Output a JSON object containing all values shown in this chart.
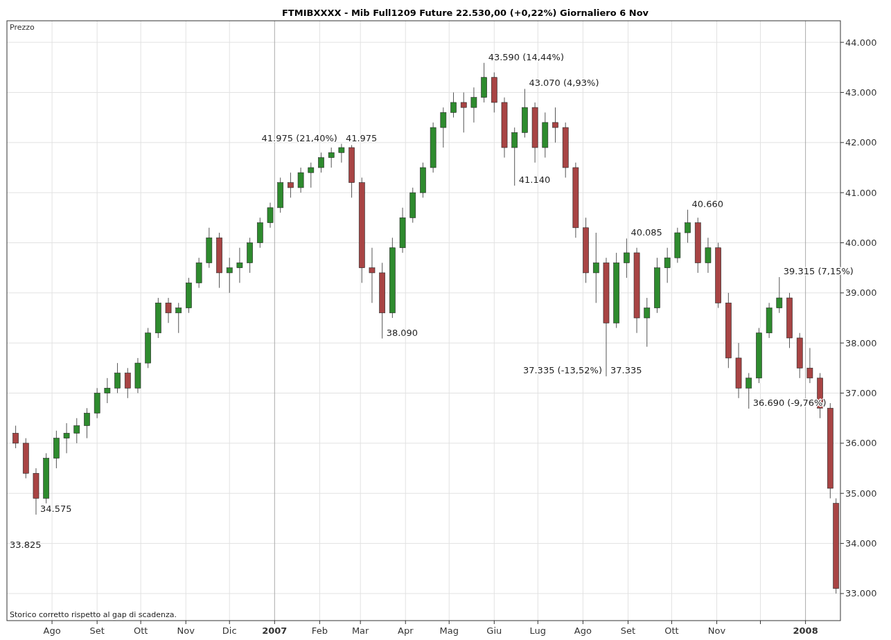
{
  "chart_data": {
    "type": "candlestick",
    "title": "FTMIBXXXX - Mib Full1209 Future    22.530,00 (+0,22%)    Giornaliero  6 Nov",
    "ylabel": "Prezzo",
    "x": [
      "2006-07-07",
      "2006-07-14",
      "2006-07-21",
      "2006-07-28",
      "2006-08-04",
      "2006-08-11",
      "2006-08-18",
      "2006-08-25",
      "2006-09-01",
      "2006-09-08",
      "2006-09-15",
      "2006-09-22",
      "2006-09-29",
      "2006-10-06",
      "2006-10-13",
      "2006-10-20",
      "2006-10-27",
      "2006-11-03",
      "2006-11-10",
      "2006-11-17",
      "2006-11-24",
      "2006-12-01",
      "2006-12-08",
      "2006-12-15",
      "2006-12-22",
      "2006-12-29",
      "2007-01-05",
      "2007-01-12",
      "2007-01-19",
      "2007-01-26",
      "2007-02-02",
      "2007-02-09",
      "2007-02-16",
      "2007-02-23",
      "2007-03-02",
      "2007-03-09",
      "2007-03-16",
      "2007-03-23",
      "2007-03-30",
      "2007-04-06",
      "2007-04-13",
      "2007-04-20",
      "2007-04-27",
      "2007-05-04",
      "2007-05-11",
      "2007-05-18",
      "2007-05-25",
      "2007-06-01",
      "2007-06-08",
      "2007-06-15",
      "2007-06-22",
      "2007-06-29",
      "2007-07-06",
      "2007-07-13",
      "2007-07-20",
      "2007-07-27",
      "2007-08-03",
      "2007-08-10",
      "2007-08-17",
      "2007-08-24",
      "2007-08-31",
      "2007-09-07",
      "2007-09-14",
      "2007-09-21",
      "2007-09-28",
      "2007-10-05",
      "2007-10-12",
      "2007-10-19",
      "2007-10-26",
      "2007-11-02",
      "2007-11-09",
      "2007-11-16",
      "2007-11-23",
      "2007-11-30",
      "2007-12-07",
      "2007-12-14",
      "2007-12-21",
      "2007-12-28",
      "2008-01-04",
      "2008-01-11",
      "2008-01-18",
      "2008-01-22"
    ],
    "ohlc": [
      [
        36200,
        36350,
        35900,
        36000
      ],
      [
        36000,
        36100,
        35300,
        35400
      ],
      [
        35400,
        35500,
        34575,
        34900
      ],
      [
        34900,
        35800,
        34800,
        35700
      ],
      [
        35700,
        36250,
        35500,
        36100
      ],
      [
        36100,
        36400,
        35800,
        36200
      ],
      [
        36200,
        36500,
        36000,
        36350
      ],
      [
        36350,
        36700,
        36100,
        36600
      ],
      [
        36600,
        37100,
        36500,
        37000
      ],
      [
        37000,
        37300,
        36800,
        37100
      ],
      [
        37100,
        37600,
        37000,
        37400
      ],
      [
        37400,
        37500,
        36900,
        37100
      ],
      [
        37100,
        37700,
        37000,
        37600
      ],
      [
        37600,
        38300,
        37500,
        38200
      ],
      [
        38200,
        38900,
        38100,
        38800
      ],
      [
        38800,
        38900,
        38400,
        38600
      ],
      [
        38600,
        38800,
        38200,
        38700
      ],
      [
        38700,
        39300,
        38600,
        39200
      ],
      [
        39200,
        39700,
        39100,
        39600
      ],
      [
        39600,
        40300,
        39500,
        40100
      ],
      [
        40100,
        40200,
        39100,
        39400
      ],
      [
        39400,
        39700,
        39000,
        39500
      ],
      [
        39500,
        39900,
        39200,
        39600
      ],
      [
        39600,
        40100,
        39400,
        40000
      ],
      [
        40000,
        40500,
        39900,
        40400
      ],
      [
        40400,
        40800,
        40300,
        40700
      ],
      [
        40700,
        41300,
        40600,
        41200
      ],
      [
        41200,
        41400,
        40900,
        41100
      ],
      [
        41100,
        41500,
        41000,
        41400
      ],
      [
        41400,
        41600,
        41100,
        41500
      ],
      [
        41500,
        41800,
        41400,
        41700
      ],
      [
        41700,
        41900,
        41500,
        41800
      ],
      [
        41800,
        41975,
        41600,
        41900
      ],
      [
        41900,
        41950,
        40900,
        41200
      ],
      [
        41200,
        41300,
        39200,
        39500
      ],
      [
        39500,
        39900,
        38800,
        39400
      ],
      [
        39400,
        39600,
        38090,
        38600
      ],
      [
        38600,
        40100,
        38500,
        39900
      ],
      [
        39900,
        40700,
        39800,
        40500
      ],
      [
        40500,
        41100,
        40400,
        41000
      ],
      [
        41000,
        41600,
        40900,
        41500
      ],
      [
        41500,
        42400,
        41400,
        42300
      ],
      [
        42300,
        42700,
        41900,
        42600
      ],
      [
        42600,
        43000,
        42500,
        42800
      ],
      [
        42800,
        43000,
        42200,
        42700
      ],
      [
        42700,
        43100,
        42400,
        42900
      ],
      [
        42900,
        43590,
        42800,
        43300
      ],
      [
        43300,
        43400,
        42600,
        42800
      ],
      [
        42800,
        42900,
        41700,
        41900
      ],
      [
        41900,
        42300,
        41140,
        42200
      ],
      [
        42200,
        43070,
        42100,
        42700
      ],
      [
        42700,
        42800,
        41600,
        41900
      ],
      [
        41900,
        42600,
        41700,
        42400
      ],
      [
        42400,
        42700,
        42000,
        42300
      ],
      [
        42300,
        42400,
        41300,
        41500
      ],
      [
        41500,
        41600,
        40100,
        40300
      ],
      [
        40300,
        40500,
        39200,
        39400
      ],
      [
        39400,
        40200,
        38800,
        39600
      ],
      [
        39600,
        39700,
        37335,
        38400
      ],
      [
        38400,
        39800,
        38300,
        39600
      ],
      [
        39600,
        40085,
        39300,
        39800
      ],
      [
        39800,
        39900,
        38200,
        38500
      ],
      [
        38500,
        38900,
        37925,
        38700
      ],
      [
        38700,
        39700,
        38600,
        39500
      ],
      [
        39500,
        39900,
        39200,
        39700
      ],
      [
        39700,
        40300,
        39600,
        40200
      ],
      [
        40200,
        40660,
        40000,
        40400
      ],
      [
        40400,
        40500,
        39400,
        39600
      ],
      [
        39600,
        40100,
        39400,
        39900
      ],
      [
        39900,
        40000,
        38700,
        38800
      ],
      [
        38800,
        39000,
        37500,
        37700
      ],
      [
        37700,
        38000,
        36900,
        37100
      ],
      [
        37100,
        37400,
        36690,
        37300
      ],
      [
        37300,
        38300,
        37200,
        38200
      ],
      [
        38200,
        38800,
        38100,
        38700
      ],
      [
        38700,
        39315,
        38600,
        38900
      ],
      [
        38900,
        39000,
        37900,
        38100
      ],
      [
        38100,
        38200,
        37300,
        37500
      ],
      [
        37500,
        37900,
        37200,
        37300
      ],
      [
        37300,
        37400,
        36500,
        36700
      ],
      [
        36700,
        36800,
        34900,
        35100
      ],
      [
        34800,
        34900,
        33000,
        33100
      ]
    ],
    "xlim": [
      "2006-07-01",
      "2008-01-25"
    ],
    "xticks": [
      {
        "value": "2006-08-01",
        "label": "Ago"
      },
      {
        "value": "2006-09-01",
        "label": "Set"
      },
      {
        "value": "2006-10-01",
        "label": "Ott"
      },
      {
        "value": "2006-11-01",
        "label": "Nov"
      },
      {
        "value": "2006-12-01",
        "label": "Dic"
      },
      {
        "value": "2007-01-01",
        "label": "2007"
      },
      {
        "value": "2007-02-01",
        "label": "Feb"
      },
      {
        "value": "2007-03-01",
        "label": "Mar"
      },
      {
        "value": "2007-04-01",
        "label": "Apr"
      },
      {
        "value": "2007-05-01",
        "label": "Mag"
      },
      {
        "value": "2007-06-01",
        "label": "Giu"
      },
      {
        "value": "2007-07-01",
        "label": "Lug"
      },
      {
        "value": "2007-08-01",
        "label": "Ago"
      },
      {
        "value": "2007-09-01",
        "label": "Set"
      },
      {
        "value": "2007-10-01",
        "label": "Ott"
      },
      {
        "value": "2007-11-01",
        "label": "Nov"
      },
      {
        "value": "2007-12-01",
        "label": null
      },
      {
        "value": "2008-01-01",
        "label": "2008"
      }
    ],
    "ylim": [
      32460,
      44430
    ],
    "yticks": [
      {
        "value": 33000,
        "label": "33.000"
      },
      {
        "value": 34000,
        "label": "34.000"
      },
      {
        "value": 35000,
        "label": "35.000"
      },
      {
        "value": 36000,
        "label": "36.000"
      },
      {
        "value": 37000,
        "label": "37.000"
      },
      {
        "value": 38000,
        "label": "38.000"
      },
      {
        "value": 39000,
        "label": "39.000"
      },
      {
        "value": 40000,
        "label": "40.000"
      },
      {
        "value": 41000,
        "label": "41.000"
      },
      {
        "value": 42000,
        "label": "42.000"
      },
      {
        "value": 43000,
        "label": "43.000"
      },
      {
        "value": 44000,
        "label": "44.000"
      }
    ],
    "grid": true,
    "annotations": [
      {
        "text": "41.975 (21,40%)",
        "x": "2007-02-16",
        "y": 41975
      },
      {
        "text": "41.975",
        "x": "2007-02-16",
        "y": 41975
      },
      {
        "text": "43.590 (14,44%)",
        "x": "2007-05-25",
        "y": 43590
      },
      {
        "text": "43.070 (4,93%)",
        "x": "2007-06-22",
        "y": 43070
      },
      {
        "text": "41.140",
        "x": "2007-06-15",
        "y": 41140
      },
      {
        "text": "38.090",
        "x": "2007-03-16",
        "y": 38090
      },
      {
        "text": "37.335 (-13,52%)",
        "x": "2007-08-17",
        "y": 37335
      },
      {
        "text": "37.335",
        "x": "2007-08-17",
        "y": 37335
      },
      {
        "text": "40.660",
        "x": "2007-10-12",
        "y": 40660
      },
      {
        "text": "40.085",
        "x": "2007-08-31",
        "y": 40085
      },
      {
        "text": "39.315 (7,15%)",
        "x": "2007-12-14",
        "y": 39315
      },
      {
        "text": "36.690 (-9,76%)",
        "x": "2007-11-23",
        "y": 36690
      },
      {
        "text": "34.575",
        "x": "2006-07-21",
        "y": 34575
      },
      "33.825",
      "Storico corretto rispetto al gap di scadenza."
    ]
  }
}
